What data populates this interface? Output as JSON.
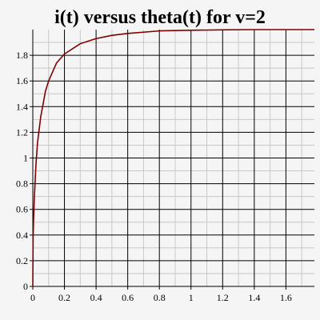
{
  "chart_data": {
    "type": "line",
    "title": "i(t) versus theta(t) for v=2",
    "xlabel": "",
    "ylabel": "",
    "xlim": [
      0,
      1.78
    ],
    "ylim": [
      0,
      2.0
    ],
    "grid": true,
    "xticks": [
      "0",
      "0.2",
      "0.4",
      "0.6",
      "0.8",
      "1",
      "1.2",
      "1.4",
      "1.6"
    ],
    "yticks": [
      "0",
      "0.2",
      "0.4",
      "0.6",
      "0.8",
      "1",
      "1.2",
      "1.4",
      "1.6",
      "1.8"
    ],
    "series": [
      {
        "color": "#800000",
        "x": [
          0,
          0.002,
          0.005,
          0.01,
          0.02,
          0.03,
          0.05,
          0.08,
          0.1,
          0.15,
          0.2,
          0.3,
          0.4,
          0.5,
          0.6,
          0.8,
          1.0,
          1.2,
          1.4,
          1.6,
          1.78
        ],
        "y": [
          0,
          0.38,
          0.52,
          0.7,
          0.95,
          1.12,
          1.32,
          1.52,
          1.6,
          1.74,
          1.81,
          1.89,
          1.93,
          1.955,
          1.97,
          1.99,
          1.995,
          1.998,
          2.0,
          2.0,
          2.0
        ]
      }
    ]
  }
}
